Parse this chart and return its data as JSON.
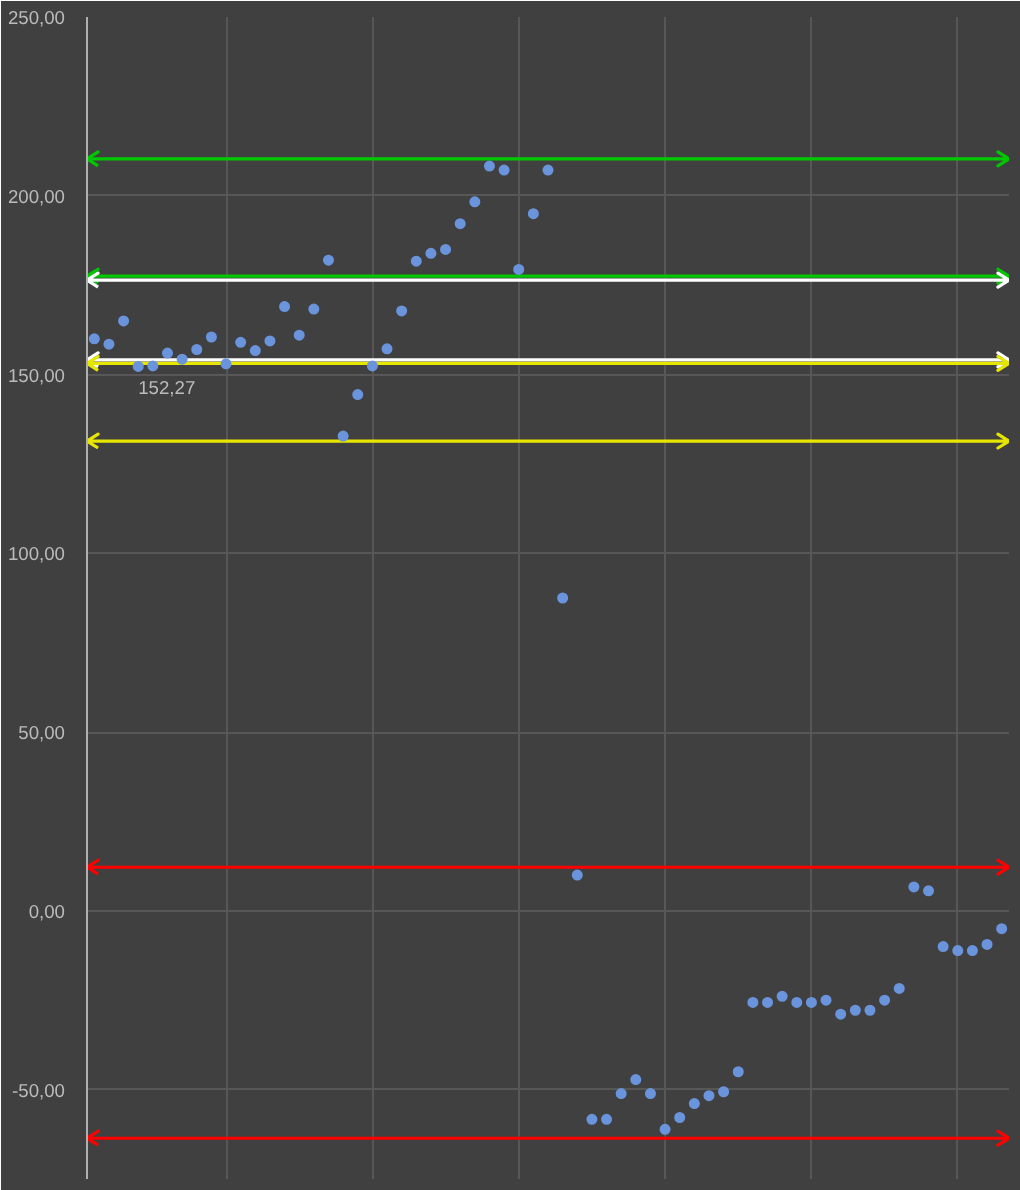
{
  "chart_data": {
    "type": "scatter",
    "categories": [
      null,
      null,
      null,
      null,
      null,
      null,
      null,
      null,
      null,
      null,
      null,
      null,
      null,
      null,
      null,
      null,
      null,
      null,
      null,
      null,
      null,
      null,
      null,
      null,
      null,
      null,
      null,
      null,
      null,
      null,
      null,
      null,
      null,
      null,
      null,
      null,
      null,
      null,
      null,
      null,
      null,
      null,
      null,
      null,
      null,
      null,
      null,
      null,
      null,
      null,
      null,
      null,
      null,
      null,
      null,
      null,
      null,
      null,
      null,
      null,
      null,
      null,
      null
    ],
    "series": [
      {
        "color": "#6a94dc",
        "values": [
          160,
          158.5,
          165,
          152.27,
          152.4,
          156,
          154.3,
          157,
          160.5,
          153,
          159,
          156.7,
          159.4,
          169,
          161,
          168.3,
          182,
          132.8,
          144.4,
          152.4,
          157.2,
          167.8,
          181.7,
          183.9,
          185,
          192.2,
          198.3,
          208.3,
          207.2,
          179.4,
          195,
          207.2,
          87.5,
          10,
          -58.3,
          -58.3,
          -51.1,
          -47.2,
          -51.1,
          -61.1,
          -57.8,
          -53.9,
          -51.7,
          -50.6,
          -45,
          -25.6,
          -25.6,
          -23.9,
          -25.6,
          -25.6,
          -25,
          -28.9,
          -27.8,
          -27.8,
          -25,
          -21.7,
          6.7,
          5.6,
          -10,
          -11.1,
          -11.1,
          -9.4,
          -5
        ],
        "value_labels": [
          null,
          null,
          null,
          "152,27",
          null,
          null,
          null,
          null,
          null,
          null,
          null,
          null,
          null,
          null,
          null,
          null,
          null,
          null,
          null,
          null,
          null,
          null,
          null,
          null,
          null,
          null,
          null,
          null,
          null,
          null,
          null,
          null,
          null,
          null,
          null,
          null,
          null,
          null,
          null,
          null,
          null,
          null,
          null,
          null,
          null,
          null,
          null,
          null,
          null,
          null,
          null,
          null,
          null,
          null,
          null,
          null,
          null,
          null,
          null,
          null,
          null,
          null,
          null
        ]
      }
    ],
    "marker": "circle",
    "ylim": [
      -75,
      250
    ],
    "yticks": [
      {
        "value": -50,
        "label": "-50,00"
      },
      {
        "value": 0,
        "label": "0,00"
      },
      {
        "value": 50,
        "label": "50,00"
      },
      {
        "value": 100,
        "label": "100,00"
      },
      {
        "value": 150,
        "label": "150,00"
      },
      {
        "value": 200,
        "label": "200,00"
      },
      {
        "value": 250,
        "label": "250,00"
      }
    ],
    "grid": true,
    "ref_lines": [
      {
        "axis": "y",
        "value": 210.3,
        "color": "#00c800"
      },
      {
        "axis": "y",
        "value": 177.5,
        "color": "#00c800"
      },
      {
        "axis": "y",
        "value": 176.4,
        "color": "#ffffff"
      },
      {
        "axis": "y",
        "value": 154.1,
        "color": "#ffffff"
      },
      {
        "axis": "y",
        "value": 153.1,
        "color": "#e6e600"
      },
      {
        "axis": "y",
        "value": 131.4,
        "color": "#e6e600"
      },
      {
        "axis": "y",
        "value": 12.2,
        "color": "#ff0000"
      },
      {
        "axis": "y",
        "value": -63.6,
        "color": "#ff0000"
      }
    ]
  }
}
